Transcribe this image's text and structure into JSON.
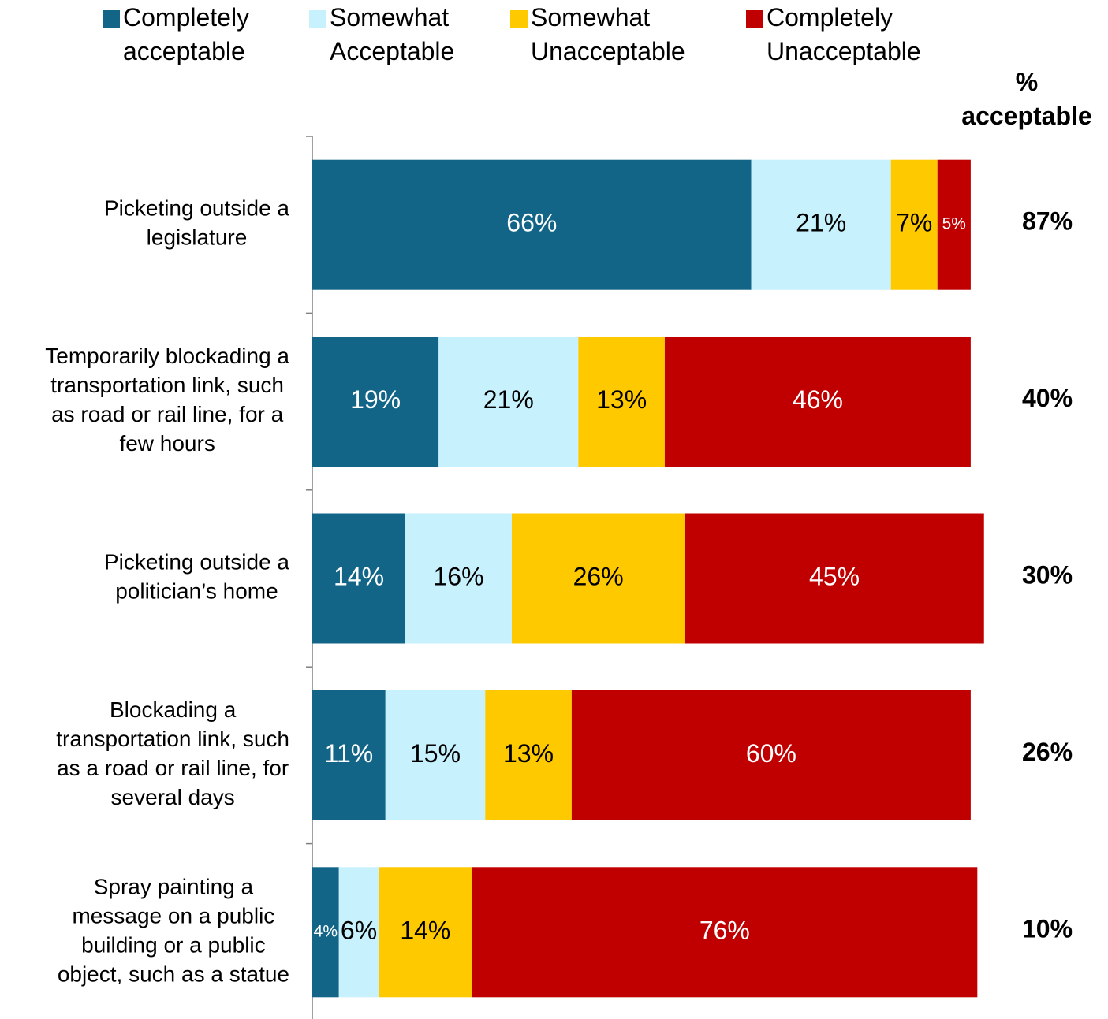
{
  "chart_data": {
    "type": "stacked_barh",
    "categories": [
      "Picketing outside a\nlegislature",
      "Temporarily blockading a\ntransportation link, such\nas road or rail line, for a\nfew hours",
      "Picketing outside a\npolitician’s home",
      "Blockading a\ntransportation link, such\nas a road or rail line, for\nseveral days",
      "Spray painting a\nmessage on a public\nbuilding or a public\nobject, such as a statue"
    ],
    "xlim": [
      0,
      100
    ],
    "series": [
      {
        "name": "Completely\nacceptable",
        "color": "#136588",
        "label_color": "#ffffff",
        "values": [
          66,
          19,
          14,
          11,
          4
        ],
        "value_labels": [
          "66%",
          "19%",
          "14%",
          "11%",
          "4%"
        ]
      },
      {
        "name": "Somewhat\nAcceptable",
        "color": "#c6f1fd",
        "label_color": "#000000",
        "values": [
          21,
          21,
          16,
          15,
          6
        ],
        "value_labels": [
          "21%",
          "21%",
          "16%",
          "15%",
          "6%"
        ]
      },
      {
        "name": "Somewhat\nUnacceptable",
        "color": "#ffc900",
        "label_color": "#000000",
        "values": [
          7,
          13,
          26,
          13,
          14
        ],
        "value_labels": [
          "7%",
          "13%",
          "26%",
          "13%",
          "14%"
        ]
      },
      {
        "name": "Completely\nUnacceptable",
        "color": "#c00000",
        "label_color": "#ffffff",
        "values": [
          5,
          46,
          45,
          60,
          76
        ],
        "value_labels": [
          "5%",
          "46%",
          "45%",
          "60%",
          "76%"
        ]
      }
    ],
    "summary": {
      "title": "%\nacceptable",
      "values": [
        87,
        40,
        30,
        26,
        10
      ],
      "value_labels": [
        "87%",
        "40%",
        "30%",
        "26%",
        "10%"
      ]
    }
  }
}
